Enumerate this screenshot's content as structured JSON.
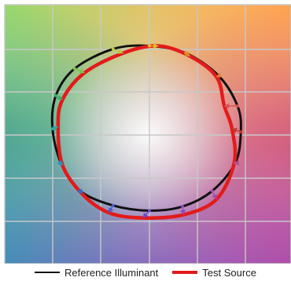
{
  "chart_data": {
    "type": "line",
    "title": "",
    "xlabel": "",
    "ylabel": "",
    "xlim": [
      -1,
      1
    ],
    "ylim": [
      -1,
      1
    ],
    "grid": true,
    "legend_position": "bottom",
    "background": "hue color wheel with white center",
    "series": [
      {
        "name": "Reference Illuminant",
        "color": "#111111",
        "points": [
          [
            0.83,
            0.03
          ],
          [
            0.8,
            0.28
          ],
          [
            0.63,
            0.57
          ],
          [
            0.33,
            0.79
          ],
          [
            0.0,
            0.86
          ],
          [
            -0.33,
            0.83
          ],
          [
            -0.68,
            0.64
          ],
          [
            -0.85,
            0.38
          ],
          [
            -0.88,
            0.06
          ],
          [
            -0.8,
            -0.28
          ],
          [
            -0.63,
            -0.54
          ],
          [
            -0.33,
            -0.68
          ],
          [
            0.0,
            -0.73
          ],
          [
            0.3,
            -0.69
          ],
          [
            0.57,
            -0.54
          ],
          [
            0.78,
            -0.27
          ]
        ]
      },
      {
        "name": "Test Source",
        "color": "#e31b1b",
        "points": [
          [
            0.75,
            0.06
          ],
          [
            0.68,
            0.28
          ],
          [
            0.61,
            0.56
          ],
          [
            0.37,
            0.76
          ],
          [
            0.08,
            0.86
          ],
          [
            -0.24,
            0.79
          ],
          [
            -0.59,
            0.6
          ],
          [
            -0.79,
            0.34
          ],
          [
            -0.83,
            0.08
          ],
          [
            -0.79,
            -0.29
          ],
          [
            -0.61,
            -0.57
          ],
          [
            -0.37,
            -0.75
          ],
          [
            -0.06,
            -0.8
          ],
          [
            0.31,
            -0.77
          ],
          [
            0.61,
            -0.62
          ],
          [
            0.77,
            -0.27
          ]
        ]
      }
    ]
  }
}
